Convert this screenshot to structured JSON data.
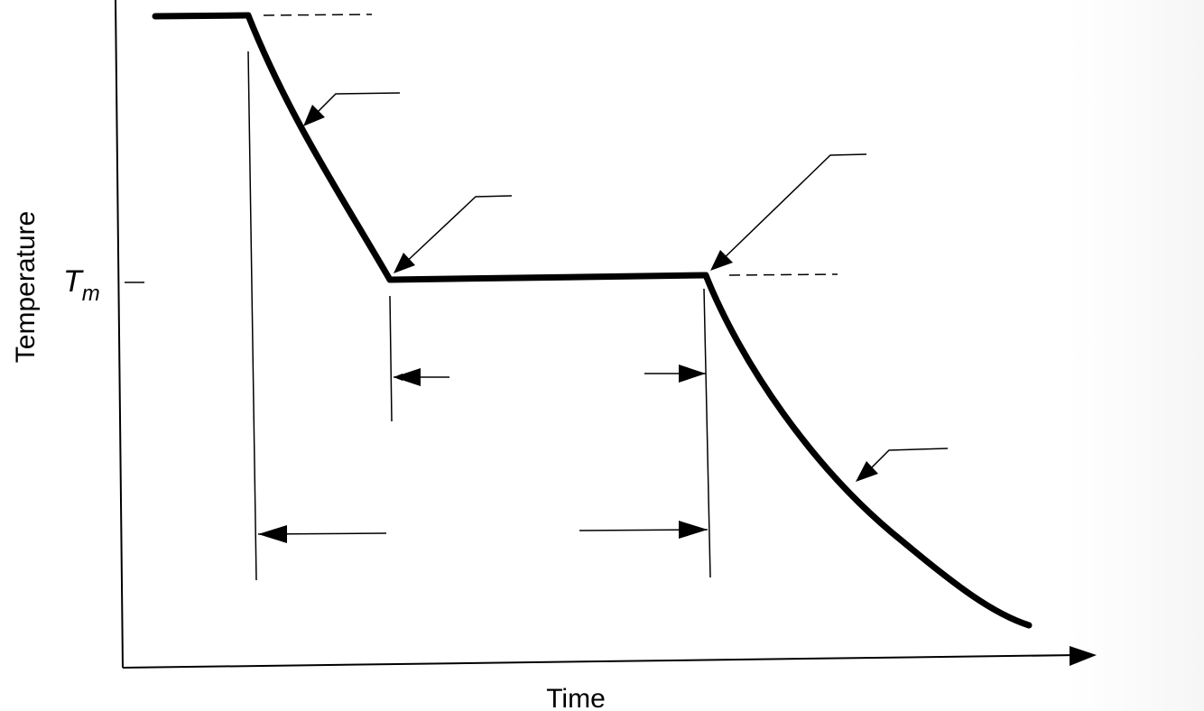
{
  "diagram": {
    "ylabel": "Temperature",
    "xlabel": "Time",
    "tm_label": {
      "main": "T",
      "sub": "m"
    }
  },
  "chart_data": {
    "type": "line",
    "title": "",
    "xlabel": "Time",
    "ylabel": "Temperature",
    "y_ticks": [
      "Tm"
    ],
    "series": [
      {
        "x": [
          0,
          1,
          2.5,
          6,
          8
        ],
        "y": [
          "above Tm",
          "above Tm",
          "Tm",
          "Tm",
          "below Tm"
        ]
      }
    ]
  }
}
